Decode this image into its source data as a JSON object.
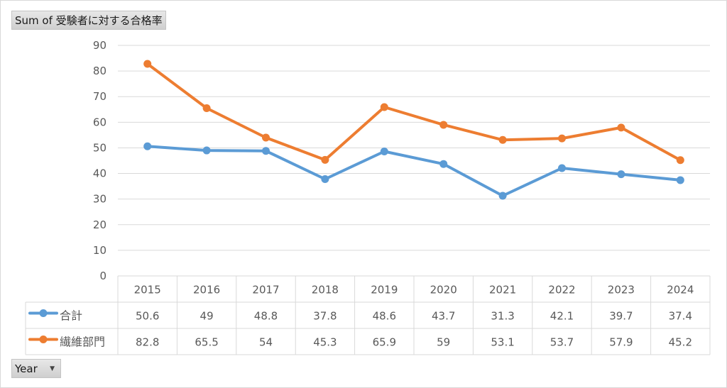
{
  "field_buttons": {
    "value_field": "Sum of 受験者に対する合格率",
    "axis_field": "Year"
  },
  "chart_data": {
    "type": "line",
    "categories": [
      "2015",
      "2016",
      "2017",
      "2018",
      "2019",
      "2020",
      "2021",
      "2022",
      "2023",
      "2024"
    ],
    "series": [
      {
        "name": "合計",
        "color": "#5b9bd5",
        "values": [
          50.6,
          49,
          48.8,
          37.8,
          48.6,
          43.7,
          31.3,
          42.1,
          39.7,
          37.4
        ]
      },
      {
        "name": "繊維部門",
        "color": "#ed7d31",
        "values": [
          82.8,
          65.5,
          54,
          45.3,
          65.9,
          59,
          53.1,
          53.7,
          57.9,
          45.2
        ]
      }
    ],
    "ylim": [
      0,
      90
    ],
    "yticks": [
      0,
      10,
      20,
      30,
      40,
      50,
      60,
      70,
      80,
      90
    ],
    "grid": true,
    "data_table": true
  }
}
